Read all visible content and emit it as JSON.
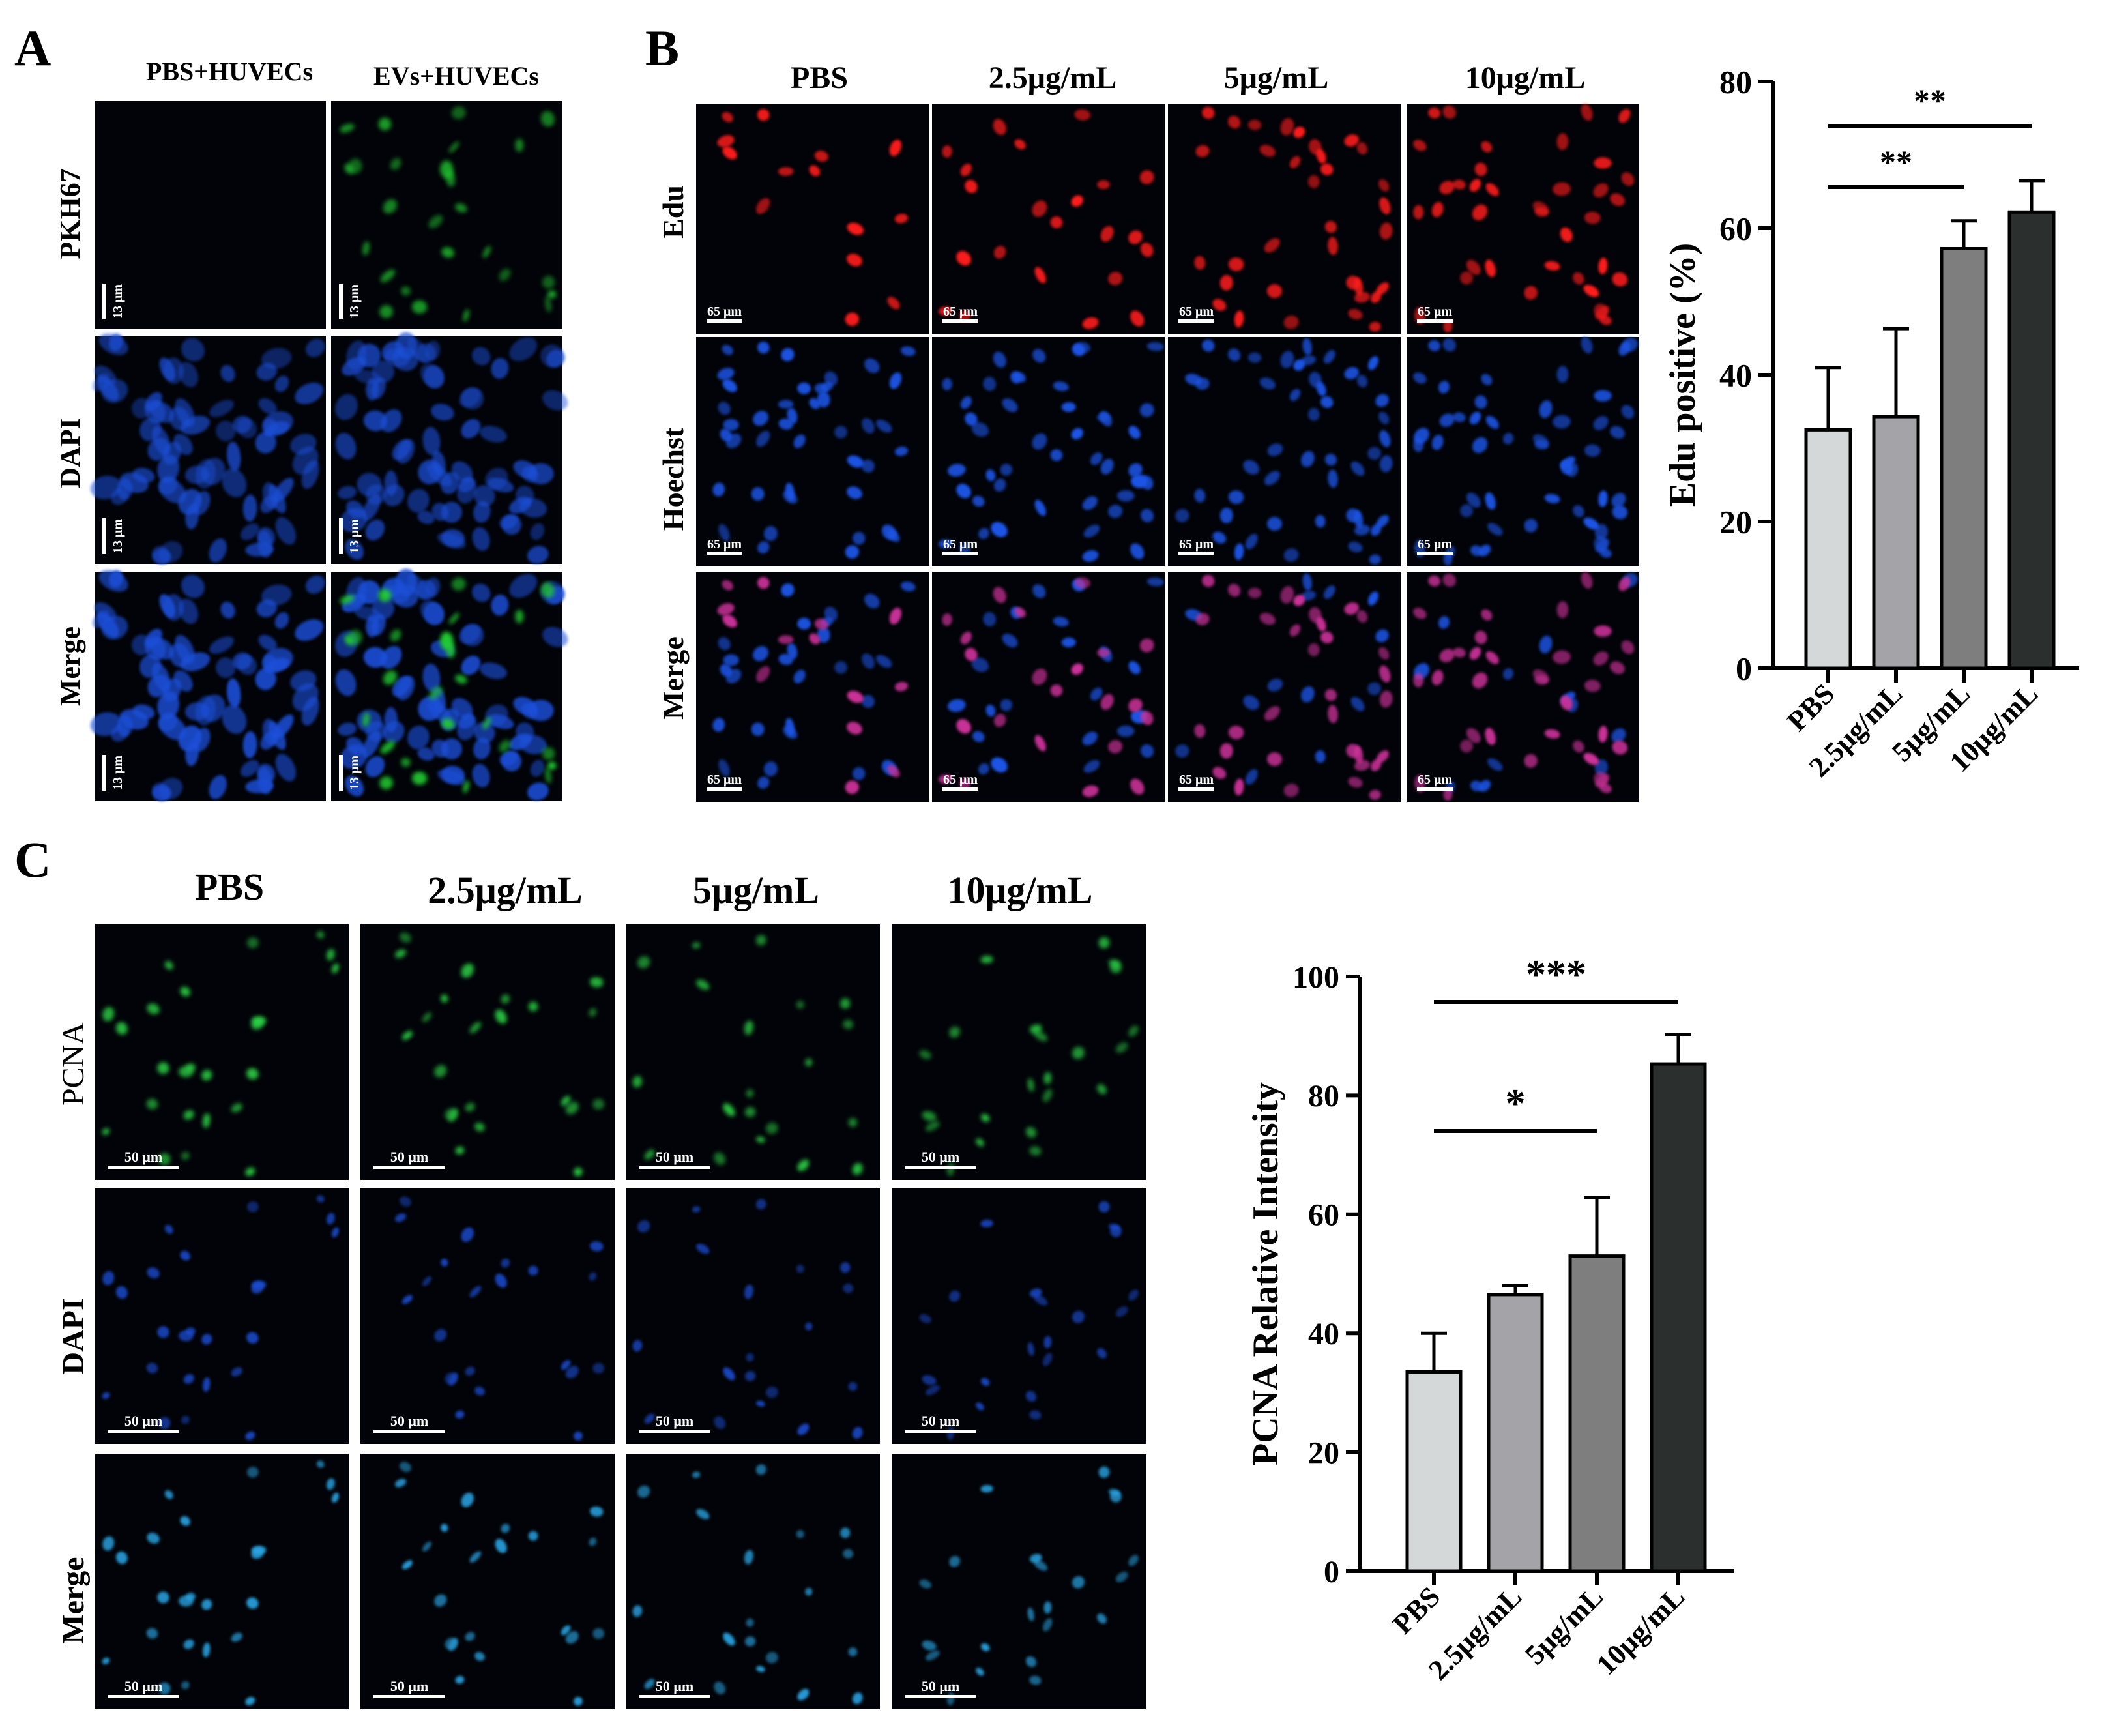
{
  "panels": {
    "A": {
      "letter": "A",
      "columns": [
        "PBS+HUVECs",
        "EVs+HUVECs"
      ],
      "rows": [
        "PKH67",
        "DAPI",
        "Merge"
      ],
      "scale_bar": "13 μm"
    },
    "B": {
      "letter": "B",
      "columns": [
        "PBS",
        "2.5μg/mL",
        "5μg/mL",
        "10μg/mL"
      ],
      "rows": [
        "Edu",
        "Hoechst",
        "Merge"
      ],
      "scale_bar": "65 μm"
    },
    "C": {
      "letter": "C",
      "columns": [
        "PBS",
        "2.5μg/mL",
        "5μg/mL",
        "10μg/mL"
      ],
      "rows": [
        "PCNA",
        "DAPI",
        "Merge"
      ],
      "scale_bar": "50 μm"
    }
  },
  "colors": {
    "pkh67": "#22cc33",
    "dapi": "#1e4fd8",
    "edu": "#ff1a1a",
    "hoechst": "#1a55e6",
    "merge_nucleus": "#cc3399",
    "pcna": "#2ee04a",
    "pcna_merge": "#2aa8e8",
    "bar_fills": [
      "#d5d8d8",
      "#a4a4a8",
      "#7e7e7e",
      "#2b2f2e"
    ]
  },
  "chart_data": [
    {
      "id": "edu-chart",
      "type": "bar",
      "categories": [
        "PBS",
        "2.5μg/mL",
        "5μg/mL",
        "10μg/mL"
      ],
      "values": [
        32.5,
        34.3,
        57.2,
        62.2
      ],
      "errors": [
        8.5,
        12.0,
        3.8,
        4.3
      ],
      "ylabel": "Edu positive (%)",
      "xlabel": "",
      "ylim": [
        0,
        80
      ],
      "yticks": [
        0,
        20,
        40,
        60,
        80
      ],
      "significance": [
        {
          "from": 0,
          "to": 3,
          "label": "**"
        },
        {
          "from": 0,
          "to": 2,
          "label": "**"
        }
      ]
    },
    {
      "id": "pcna-chart",
      "type": "bar",
      "categories": [
        "PBS",
        "2.5μg/mL",
        "5μg/mL",
        "10μg/mL"
      ],
      "values": [
        33.5,
        46.5,
        53.0,
        85.3
      ],
      "errors": [
        6.5,
        1.5,
        9.8,
        5.0
      ],
      "ylabel": "PCNA Relative Intensity",
      "xlabel": "",
      "ylim": [
        0,
        100
      ],
      "yticks": [
        0,
        20,
        40,
        60,
        80,
        100
      ],
      "significance": [
        {
          "from": 0,
          "to": 3,
          "label": "***"
        },
        {
          "from": 0,
          "to": 2,
          "label": "*"
        }
      ]
    }
  ]
}
